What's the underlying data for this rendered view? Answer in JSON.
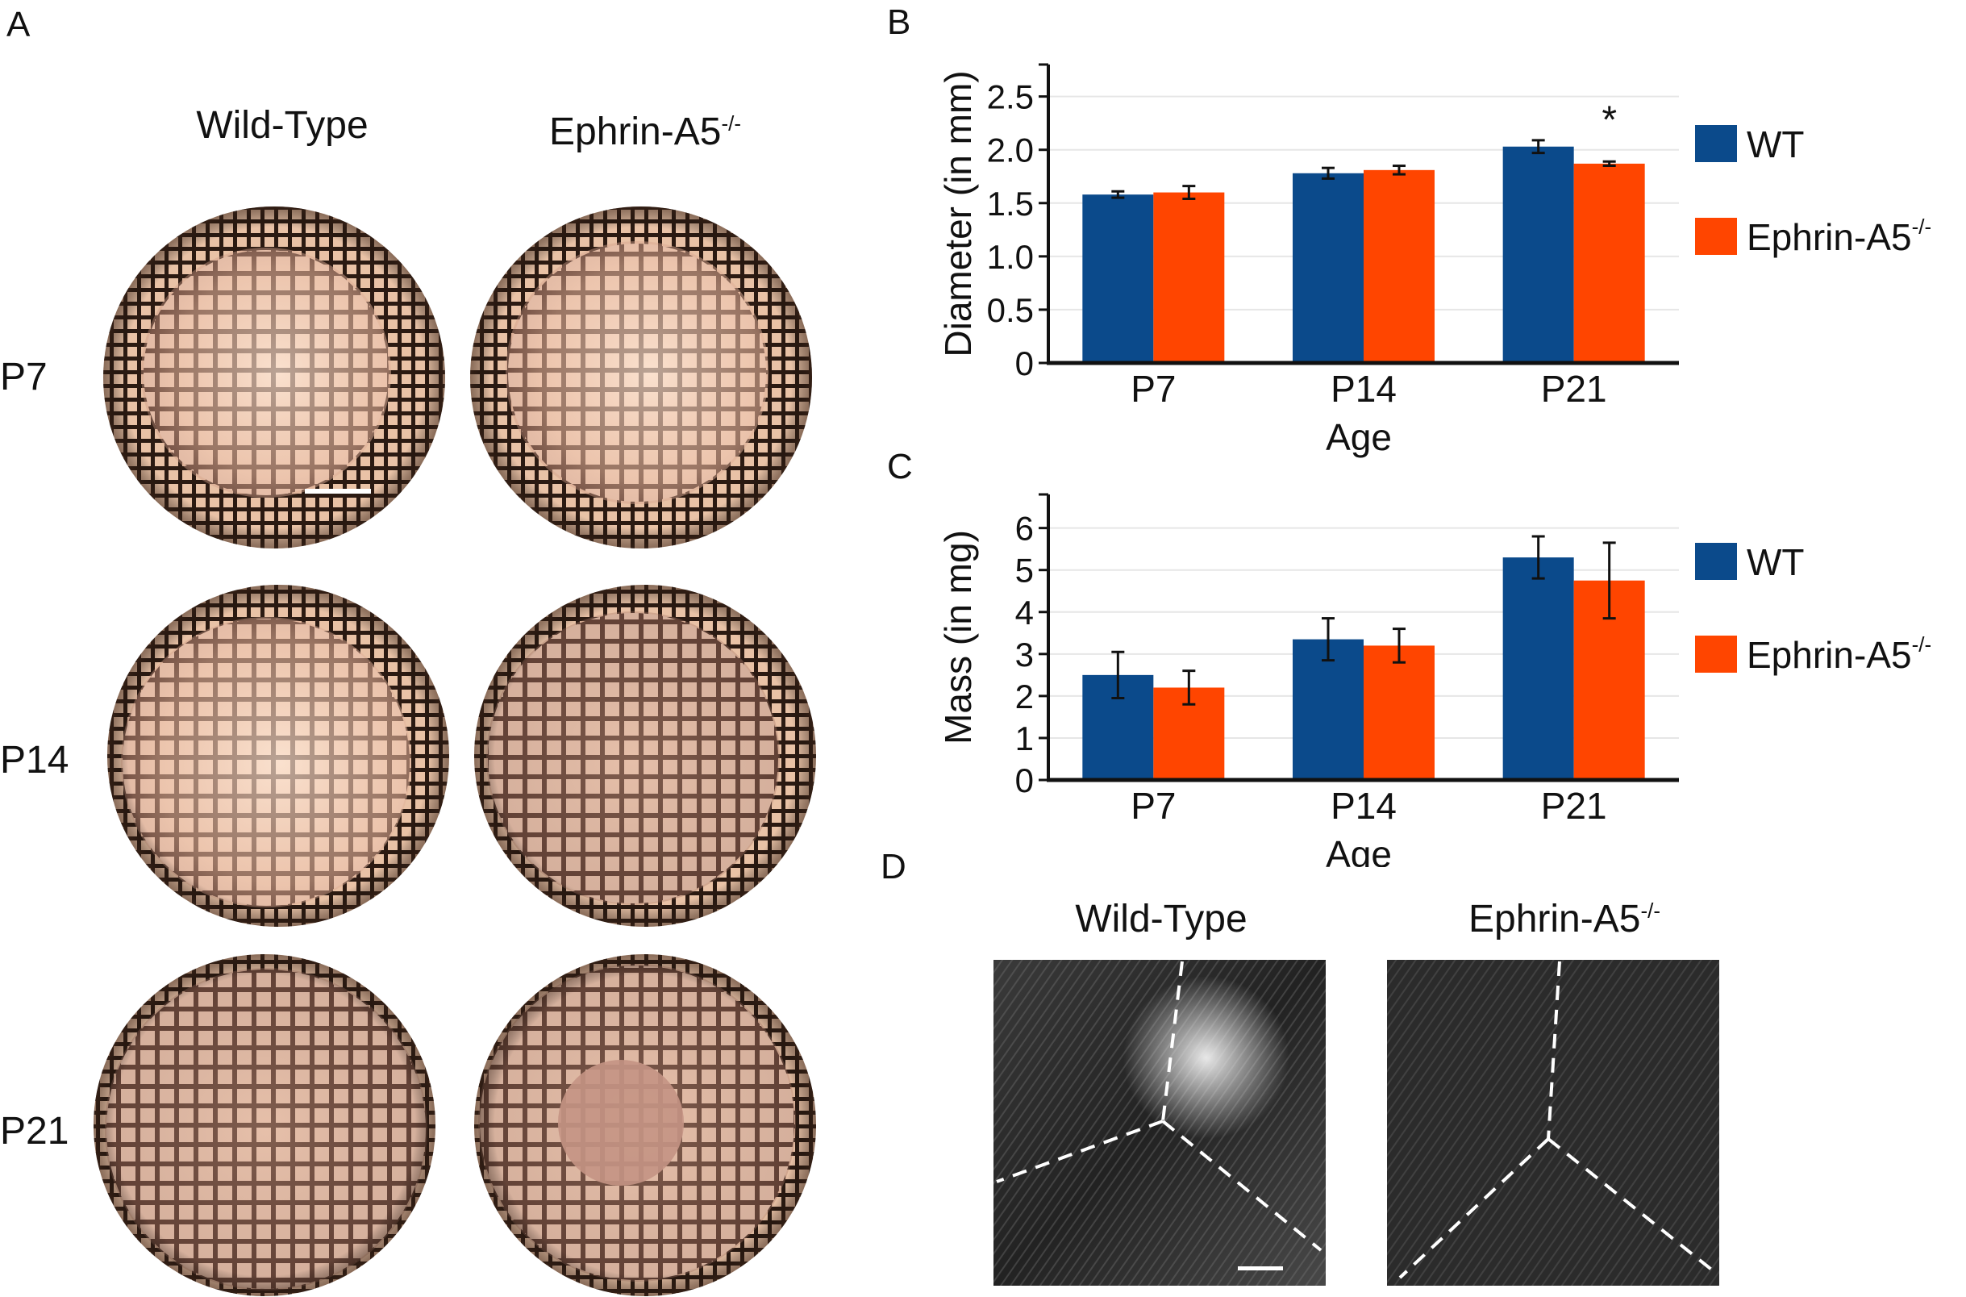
{
  "panel_a": {
    "letter": "A",
    "col_titles": [
      {
        "text": "Wild-Type",
        "sup": ""
      },
      {
        "text": "Ephrin-A5",
        "sup": "-/-"
      }
    ],
    "row_labels": [
      "P7",
      "P14",
      "P21"
    ]
  },
  "panel_d": {
    "letter": "D",
    "col_titles": [
      {
        "text": "Wild-Type",
        "sup": ""
      },
      {
        "text": "Ephrin-A5",
        "sup": "-/-"
      }
    ]
  },
  "colors": {
    "wt": "#0b4a8b",
    "ko": "#ff4500"
  },
  "chart_data": [
    {
      "panel": "B",
      "type": "bar",
      "categories": [
        "P7",
        "P14",
        "P21"
      ],
      "xlabel": "Age",
      "ylabel": "Diameter (in mm)",
      "ylim": [
        0,
        2.8
      ],
      "yticks": [
        "0",
        "0.5",
        "1.0",
        "1.5",
        "2.0",
        "2.5"
      ],
      "ytick_values": [
        0,
        0.5,
        1.0,
        1.5,
        2.0,
        2.5
      ],
      "grid": true,
      "legend": {
        "position": "right",
        "entries": [
          {
            "text": "WT",
            "sup": ""
          },
          {
            "text": "Ephrin-A5",
            "sup": "-/-"
          }
        ]
      },
      "series": [
        {
          "name": "WT",
          "values": [
            1.58,
            1.78,
            2.03
          ],
          "errors": [
            0.03,
            0.05,
            0.06
          ]
        },
        {
          "name": "Ephrin-A5-/-",
          "values": [
            1.6,
            1.81,
            1.87
          ],
          "errors": [
            0.06,
            0.04,
            0.02
          ]
        }
      ],
      "annotations": [
        {
          "text": "*",
          "category": "P21",
          "series": 1
        }
      ]
    },
    {
      "panel": "C",
      "type": "bar",
      "categories": [
        "P7",
        "P14",
        "P21"
      ],
      "xlabel": "Age",
      "ylabel": "Mass (in mg)",
      "ylim": [
        0,
        6.8
      ],
      "yticks": [
        "0",
        "1",
        "2",
        "3",
        "4",
        "5",
        "6"
      ],
      "ytick_values": [
        0,
        1,
        2,
        3,
        4,
        5,
        6
      ],
      "grid": true,
      "legend": {
        "position": "right",
        "entries": [
          {
            "text": "WT",
            "sup": ""
          },
          {
            "text": "Ephrin-A5",
            "sup": "-/-"
          }
        ]
      },
      "series": [
        {
          "name": "WT",
          "values": [
            2.5,
            3.35,
            5.3
          ],
          "errors": [
            0.55,
            0.5,
            0.5
          ]
        },
        {
          "name": "Ephrin-A5-/-",
          "values": [
            2.2,
            3.2,
            4.75
          ],
          "errors": [
            0.4,
            0.4,
            0.9
          ]
        }
      ],
      "annotations": []
    }
  ]
}
